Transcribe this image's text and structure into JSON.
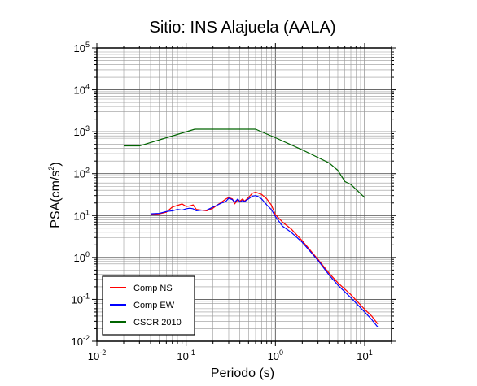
{
  "chart_data": {
    "type": "line",
    "title": "Sitio: INS Alajuela (AALA)",
    "xlabel": "Periodo (s)",
    "ylabel": "PSA(cm/s2)",
    "ylabel_parts": {
      "main": "PSA(cm/s",
      "sup": "2",
      "close": ")"
    },
    "xscale": "log",
    "yscale": "log",
    "xlim": [
      0.01,
      20
    ],
    "ylim": [
      0.01,
      100000
    ],
    "grid": true,
    "legend_position": "bottom-left",
    "x_ticks": [
      {
        "value": 0.01,
        "base": "10",
        "exp": "-2"
      },
      {
        "value": 0.1,
        "base": "10",
        "exp": "-1"
      },
      {
        "value": 1,
        "base": "10",
        "exp": "0"
      },
      {
        "value": 10,
        "base": "10",
        "exp": "1"
      }
    ],
    "y_ticks": [
      {
        "value": 0.01,
        "base": "10",
        "exp": "-2"
      },
      {
        "value": 0.1,
        "base": "10",
        "exp": "-1"
      },
      {
        "value": 1,
        "base": "10",
        "exp": "0"
      },
      {
        "value": 10,
        "base": "10",
        "exp": "1"
      },
      {
        "value": 100,
        "base": "10",
        "exp": "2"
      },
      {
        "value": 1000,
        "base": "10",
        "exp": "3"
      },
      {
        "value": 10000,
        "base": "10",
        "exp": "4"
      },
      {
        "value": 100000,
        "base": "10",
        "exp": "5"
      }
    ],
    "series": [
      {
        "name": "Comp NS",
        "color": "#ff0000",
        "points": [
          [
            0.04,
            10.5
          ],
          [
            0.05,
            11.0
          ],
          [
            0.06,
            12.0
          ],
          [
            0.07,
            16.0
          ],
          [
            0.08,
            17.5
          ],
          [
            0.09,
            19.0
          ],
          [
            0.1,
            16.5
          ],
          [
            0.11,
            17.0
          ],
          [
            0.12,
            18.0
          ],
          [
            0.13,
            14.0
          ],
          [
            0.15,
            13.5
          ],
          [
            0.17,
            13.0
          ],
          [
            0.2,
            15.0
          ],
          [
            0.22,
            17.5
          ],
          [
            0.25,
            21.0
          ],
          [
            0.28,
            25.0
          ],
          [
            0.3,
            27.0
          ],
          [
            0.33,
            25.0
          ],
          [
            0.35,
            19.0
          ],
          [
            0.38,
            24.0
          ],
          [
            0.4,
            22.0
          ],
          [
            0.43,
            25.0
          ],
          [
            0.45,
            22.0
          ],
          [
            0.5,
            27.0
          ],
          [
            0.55,
            34.0
          ],
          [
            0.6,
            36.0
          ],
          [
            0.65,
            34.0
          ],
          [
            0.7,
            32.0
          ],
          [
            0.8,
            25.0
          ],
          [
            0.9,
            18.0
          ],
          [
            1.0,
            10.5
          ],
          [
            1.2,
            7.0
          ],
          [
            1.5,
            4.8
          ],
          [
            2.0,
            2.5
          ],
          [
            3.0,
            0.9
          ],
          [
            4.0,
            0.42
          ],
          [
            5.0,
            0.25
          ],
          [
            7.0,
            0.13
          ],
          [
            10.0,
            0.058
          ],
          [
            12.0,
            0.04
          ],
          [
            14.0,
            0.026
          ]
        ]
      },
      {
        "name": "Comp EW",
        "color": "#0000ff",
        "points": [
          [
            0.04,
            11.0
          ],
          [
            0.05,
            11.3
          ],
          [
            0.06,
            12.5
          ],
          [
            0.07,
            13.0
          ],
          [
            0.08,
            14.0
          ],
          [
            0.09,
            13.5
          ],
          [
            0.1,
            14.5
          ],
          [
            0.11,
            15.0
          ],
          [
            0.12,
            14.5
          ],
          [
            0.13,
            13.0
          ],
          [
            0.15,
            13.5
          ],
          [
            0.17,
            13.5
          ],
          [
            0.2,
            16.0
          ],
          [
            0.22,
            17.5
          ],
          [
            0.25,
            20.0
          ],
          [
            0.28,
            22.0
          ],
          [
            0.3,
            26.0
          ],
          [
            0.33,
            24.0
          ],
          [
            0.35,
            21.0
          ],
          [
            0.38,
            25.0
          ],
          [
            0.4,
            21.0
          ],
          [
            0.43,
            23.0
          ],
          [
            0.45,
            21.5
          ],
          [
            0.5,
            25.0
          ],
          [
            0.55,
            29.0
          ],
          [
            0.6,
            30.0
          ],
          [
            0.65,
            28.0
          ],
          [
            0.7,
            25.0
          ],
          [
            0.8,
            18.0
          ],
          [
            0.9,
            14.0
          ],
          [
            1.0,
            9.5
          ],
          [
            1.2,
            5.6
          ],
          [
            1.5,
            4.0
          ],
          [
            2.0,
            2.3
          ],
          [
            3.0,
            0.85
          ],
          [
            4.0,
            0.38
          ],
          [
            5.0,
            0.22
          ],
          [
            7.0,
            0.11
          ],
          [
            10.0,
            0.05
          ],
          [
            12.0,
            0.033
          ],
          [
            14.0,
            0.022
          ]
        ]
      },
      {
        "name": "CSCR 2010",
        "color": "#006400",
        "points": [
          [
            0.02,
            460
          ],
          [
            0.03,
            460
          ],
          [
            0.125,
            1150
          ],
          [
            0.6,
            1150
          ],
          [
            1.0,
            720
          ],
          [
            2.0,
            370
          ],
          [
            4.0,
            180
          ],
          [
            5.0,
            120
          ],
          [
            6.0,
            65
          ],
          [
            7.0,
            55
          ],
          [
            10.0,
            27
          ]
        ]
      }
    ]
  }
}
